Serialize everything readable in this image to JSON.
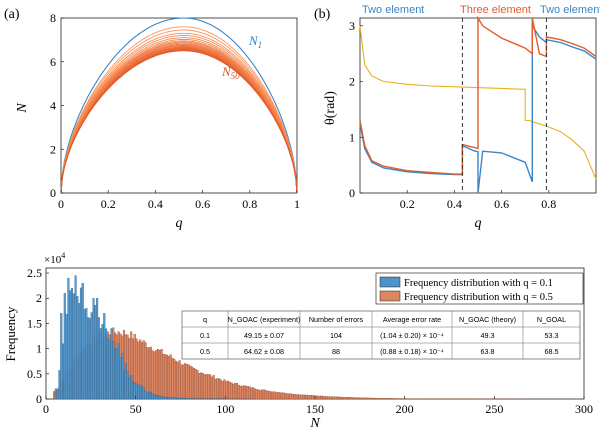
{
  "colors": {
    "blue": "#3b86c6",
    "orange": "#e15c2b",
    "gold": "#e8b21d",
    "hist_blue": "#4f93c8",
    "hist_orange": "#dc8763",
    "label_blue": "#2f86cf",
    "label_orange": "#d9532b"
  },
  "panels": {
    "a": {
      "tag": "(a)"
    },
    "b": {
      "tag": "(b)"
    }
  },
  "chart_data": [
    {
      "type": "line",
      "panel": "a",
      "xlabel": "q",
      "ylabel": "N",
      "xlim": [
        0,
        1
      ],
      "ylim": [
        0,
        8
      ],
      "xticks": [
        "0",
        "0.2",
        "0.4",
        "0.6",
        "0.8",
        "1"
      ],
      "yticks": [
        "0",
        "2",
        "4",
        "6",
        "8"
      ],
      "annotations": {
        "n1": "1",
        "n50": "50"
      },
      "series_peaks": [
        8.0,
        7.6,
        7.45,
        7.3,
        7.2,
        7.1,
        7.02,
        6.95,
        6.9,
        6.85,
        6.8,
        6.76,
        6.72,
        6.68,
        6.65,
        6.62,
        6.6,
        6.57,
        6.55,
        6.52,
        6.5
      ],
      "peak_q": 0.52
    },
    {
      "type": "line",
      "panel": "b",
      "xlabel": "q",
      "ylabel": "θ(rad)",
      "xlim": [
        0,
        1
      ],
      "ylim": [
        0,
        3.14
      ],
      "xticks": [
        "0.2",
        "0.4",
        "0.6",
        "0.8"
      ],
      "yticks": [
        "0",
        "1",
        "2",
        "3"
      ],
      "regions": [
        "Two element",
        "Three element",
        "Two element"
      ],
      "dividers": [
        0.434,
        0.79
      ],
      "series": [
        {
          "name": "gold",
          "x": [
            0.0,
            0.02,
            0.05,
            0.1,
            0.2,
            0.3,
            0.434,
            0.7,
            0.7,
            0.72,
            0.73,
            0.73,
            0.79,
            0.85,
            0.9,
            0.95,
            1.0
          ],
          "y": [
            3.0,
            2.3,
            2.1,
            2.0,
            1.95,
            1.92,
            1.9,
            1.86,
            1.3,
            1.3,
            1.28,
            1.28,
            1.2,
            1.1,
            0.95,
            0.75,
            0.25
          ]
        },
        {
          "name": "blue",
          "x": [
            0.0,
            0.02,
            0.05,
            0.1,
            0.2,
            0.3,
            0.4,
            0.434,
            0.434,
            0.46,
            0.48,
            0.5,
            0.5,
            0.52,
            0.6,
            0.7,
            0.73,
            0.73,
            0.76,
            0.79,
            0.79,
            0.85,
            0.9,
            0.95,
            1.0
          ],
          "y": [
            1.25,
            0.8,
            0.55,
            0.45,
            0.38,
            0.35,
            0.33,
            0.33,
            0.85,
            0.8,
            0.76,
            0.74,
            0.0,
            0.75,
            0.72,
            0.55,
            0.2,
            3.0,
            2.8,
            2.7,
            2.75,
            2.7,
            2.62,
            2.55,
            2.4
          ]
        },
        {
          "name": "orange",
          "x": [
            0.0,
            0.02,
            0.05,
            0.1,
            0.2,
            0.3,
            0.4,
            0.434,
            0.434,
            0.47,
            0.5,
            0.5,
            0.52,
            0.6,
            0.7,
            0.73,
            0.73,
            0.76,
            0.79,
            0.79,
            0.85,
            0.9,
            0.95,
            1.0
          ],
          "y": [
            1.3,
            0.85,
            0.58,
            0.48,
            0.4,
            0.37,
            0.34,
            0.34,
            0.87,
            0.83,
            0.8,
            3.14,
            3.0,
            2.78,
            2.6,
            2.5,
            3.14,
            2.5,
            2.45,
            2.8,
            2.75,
            2.68,
            2.6,
            2.45
          ]
        }
      ]
    },
    {
      "type": "bar",
      "panel": "c",
      "xlabel": "N",
      "ylabel": "Frequency",
      "xlim": [
        0,
        300
      ],
      "ylim": [
        0,
        2.6
      ],
      "y_multiplier": "×10",
      "y_multiplier_exp": "4",
      "xticks": [
        "0",
        "50",
        "100",
        "150",
        "200",
        "250",
        "300"
      ],
      "yticks": [
        "0",
        "0.5",
        "1",
        "1.5",
        "2",
        "2.5"
      ],
      "series": [
        {
          "name": "Frequency distribution with q = 0.1",
          "mean": 49.15
        },
        {
          "name": "Frequency distribution with q = 0.5",
          "mean": 64.62
        }
      ],
      "blue_profile": {
        "x": [
          6,
          8,
          10,
          12,
          14,
          16,
          18,
          20,
          22,
          24,
          26,
          28,
          30,
          32,
          34,
          36,
          38,
          40,
          44,
          48,
          52,
          56,
          60,
          66,
          72,
          80,
          90,
          100,
          120,
          140
        ],
        "y": [
          0.2,
          0.9,
          1.6,
          1.9,
          2.1,
          2.15,
          2.0,
          1.95,
          1.9,
          1.85,
          1.75,
          1.65,
          1.55,
          1.45,
          1.35,
          1.2,
          1.05,
          0.9,
          0.6,
          0.4,
          0.25,
          0.15,
          0.08,
          0.04,
          0.02,
          0.01,
          0.005,
          0.002,
          0.0,
          0.0
        ]
      },
      "orange_profile": {
        "x": [
          5,
          10,
          15,
          20,
          25,
          30,
          35,
          40,
          45,
          50,
          55,
          60,
          70,
          80,
          90,
          100,
          110,
          120,
          130,
          140,
          150,
          160,
          170,
          180,
          190,
          200,
          220,
          240,
          260,
          280
        ],
        "y": [
          0.15,
          0.4,
          0.75,
          1.0,
          1.15,
          1.25,
          1.32,
          1.33,
          1.3,
          1.2,
          1.1,
          1.0,
          0.82,
          0.62,
          0.48,
          0.35,
          0.26,
          0.18,
          0.13,
          0.09,
          0.065,
          0.045,
          0.03,
          0.02,
          0.013,
          0.008,
          0.004,
          0.002,
          0.001,
          0.0
        ]
      },
      "blue_spikes": [
        0.8,
        1.7,
        2.1,
        2.4,
        2.2,
        2.45,
        1.9,
        2.3,
        1.8,
        1.6,
        2.0,
        1.4,
        1.7,
        1.2,
        1.4,
        1.0,
        1.1,
        0.9,
        0.7
      ],
      "table": {
        "headers": [
          "q",
          "N_GOAC (experiment)",
          "Number of errors",
          "Average error rate",
          "N_GOAC (theory)",
          "N_GOAL"
        ],
        "rows": [
          [
            "0.1",
            "49.15 ± 0.07",
            "104",
            "(1.04 ± 0.20) × 10⁻⁴",
            "49.3",
            "53.3"
          ],
          [
            "0.5",
            "64.62 ± 0.08",
            "88",
            "(0.88 ± 0.18) × 10⁻⁴",
            "63.8",
            "68.5"
          ]
        ]
      }
    }
  ]
}
